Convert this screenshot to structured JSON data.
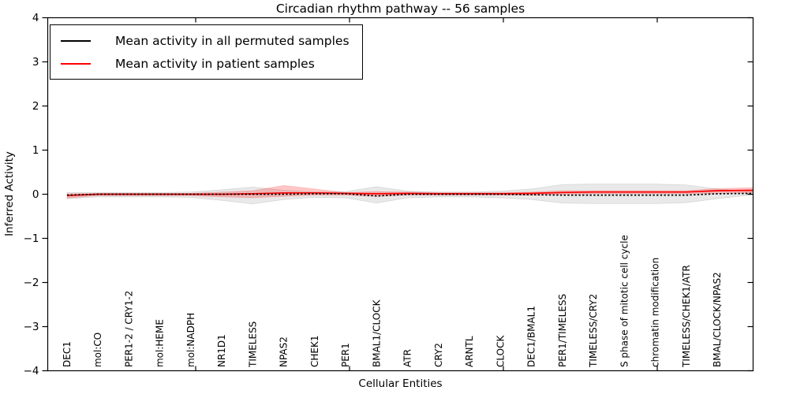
{
  "figure": {
    "title": "Circadian rhythm pathway -- 56 samples",
    "xlabel": "Cellular Entities",
    "ylabel": "Inferred Activity"
  },
  "legend": {
    "items": [
      {
        "label": "Mean activity in all permuted samples",
        "color": "#000000"
      },
      {
        "label": "Mean activity in patient samples",
        "color": "#ff0000"
      }
    ]
  },
  "chart_data": {
    "type": "line",
    "title": "Circadian rhythm pathway -- 56 samples",
    "xlabel": "Cellular Entities",
    "ylabel": "Inferred Activity",
    "ylim": [
      -4,
      4
    ],
    "yticks": [
      4,
      3,
      2,
      1,
      0,
      -1,
      -2,
      -3,
      -4
    ],
    "grid": false,
    "legend_position": "upper left",
    "categories": [
      "DEC1",
      "mol:CO",
      "PER1-2 / CRY1-2",
      "mol:HEME",
      "mol:NADPH",
      "NR1D1",
      "TIMELESS",
      "NPAS2",
      "CHEK1",
      "PER1",
      "BMAL1/CLOCK",
      "ATR",
      "CRY2",
      "ARNTL",
      "CLOCK",
      "DEC1/BMAL1",
      "PER1/TIMELESS",
      "TIMELESS/CRY2",
      "S phase of mitotic cell cycle",
      "chromatin modification",
      "TIMELESS/CHEK1/ATR",
      "BMAL/CLOCK/NPAS2"
    ],
    "series": [
      {
        "name": "Mean activity in all permuted samples",
        "color": "#000000",
        "line_style": "dashed",
        "values": [
          -0.02,
          0,
          0,
          0,
          0,
          0,
          0,
          0,
          0.01,
          0.01,
          -0.04,
          0,
          0,
          0,
          0,
          -0.01,
          -0.02,
          -0.02,
          -0.02,
          -0.02,
          -0.02,
          0.01
        ]
      },
      {
        "name": "Mean activity in patient samples",
        "color": "#ff0000",
        "line_style": "solid",
        "values": [
          -0.03,
          0,
          0,
          0,
          0,
          0,
          0.01,
          0.03,
          0.03,
          0.02,
          0.01,
          0.02,
          0.01,
          0.01,
          0.01,
          0.02,
          0.04,
          0.05,
          0.05,
          0.05,
          0.05,
          0.08
        ]
      }
    ],
    "bands": [
      {
        "name": "permuted-activity-range",
        "color": "rgba(125,125,125,0.17)",
        "upper": [
          0.04,
          0.04,
          0.04,
          0.04,
          0.05,
          0.1,
          0.16,
          0.09,
          0.05,
          0.06,
          0.17,
          0.07,
          0.05,
          0.05,
          0.07,
          0.12,
          0.22,
          0.23,
          0.23,
          0.23,
          0.21,
          0.12
        ],
        "lower": [
          -0.1,
          -0.06,
          -0.06,
          -0.06,
          -0.07,
          -0.14,
          -0.22,
          -0.12,
          -0.07,
          -0.08,
          -0.2,
          -0.08,
          -0.06,
          -0.06,
          -0.08,
          -0.12,
          -0.2,
          -0.21,
          -0.21,
          -0.21,
          -0.19,
          -0.1
        ]
      },
      {
        "name": "patient-activity-range",
        "color": "rgba(255,0,0,0.22)",
        "upper": [
          0.01,
          0.02,
          0.02,
          0.02,
          0.02,
          0.05,
          0.08,
          0.2,
          0.12,
          0.04,
          0.06,
          0.05,
          0.04,
          0.04,
          0.04,
          0.05,
          0.08,
          0.08,
          0.08,
          0.08,
          0.08,
          0.13
        ],
        "lower": [
          -0.09,
          -0.03,
          -0.03,
          -0.03,
          -0.03,
          -0.06,
          -0.08,
          -0.05,
          -0.02,
          -0.02,
          -0.05,
          -0.02,
          -0.02,
          -0.02,
          -0.02,
          -0.02,
          0.0,
          0.01,
          0.01,
          0.01,
          0.01,
          0.02
        ]
      }
    ],
    "right_edge_extension": {
      "permuted": 0.02,
      "patient": 0.09,
      "permuted_band_upper": 0.06,
      "permuted_band_lower": -0.01,
      "patient_band_upper": 0.15,
      "patient_band_lower": 0.03
    }
  }
}
